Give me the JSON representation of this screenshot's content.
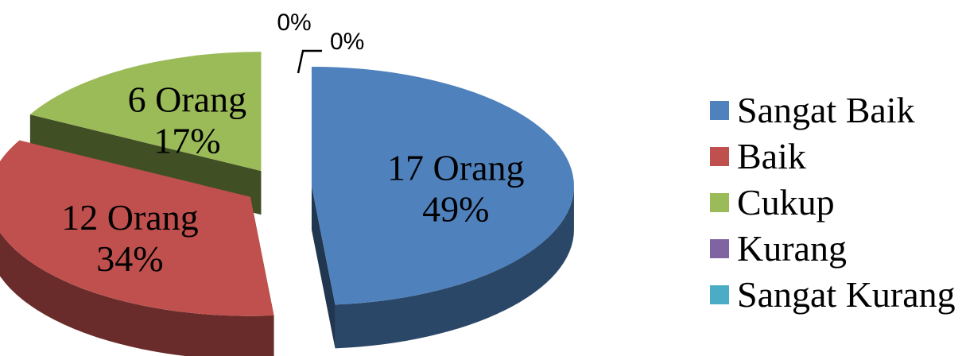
{
  "chart_data": {
    "type": "pie",
    "style": "3d-exploded",
    "title": "",
    "slices": [
      {
        "name": "Sangat Baik",
        "count_label": "17 Orang",
        "percent_label": "49%",
        "value": 17,
        "color": "#4F81BD"
      },
      {
        "name": "Baik",
        "count_label": "12 Orang",
        "percent_label": "34%",
        "value": 12,
        "color": "#C0504D"
      },
      {
        "name": "Cukup",
        "count_label": "6 Orang",
        "percent_label": "17%",
        "value": 6,
        "color": "#9BBB59"
      },
      {
        "name": "Kurang",
        "count_label": "",
        "percent_label": "0%",
        "value": 0,
        "color": "#8064A2"
      },
      {
        "name": "Sangat Kurang",
        "count_label": "",
        "percent_label": "0%",
        "value": 0,
        "color": "#4BACC6"
      }
    ],
    "legend_position": "right"
  }
}
